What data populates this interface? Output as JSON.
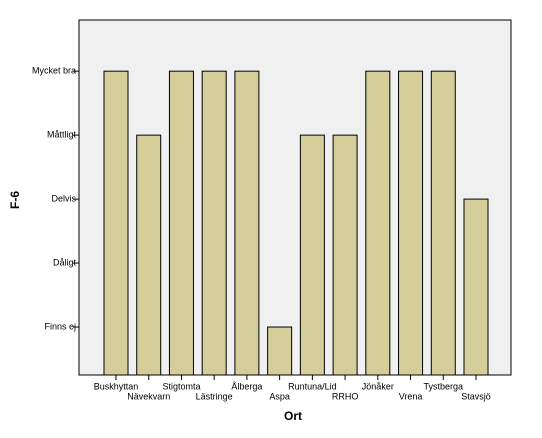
{
  "chart_data": {
    "type": "bar",
    "categories": [
      "Buskhyttan",
      "Nävekvarn",
      "Stigtomta",
      "Lästringe",
      "Ålberga",
      "Aspa",
      "Runtuna/Lid",
      "RRHO",
      "Jönåker",
      "Vrena",
      "Tystberga",
      "Stavsjö"
    ],
    "values": [
      5,
      4,
      5,
      5,
      5,
      1,
      4,
      4,
      5,
      5,
      5,
      3
    ],
    "color": "#d4cf9a",
    "xlabel": "Ort",
    "ylabel": "F-6",
    "ylim": [
      0.25,
      5.8
    ],
    "yticks": [
      {
        "value": 1,
        "label": "Finns ej"
      },
      {
        "value": 2,
        "label": "Dåligt"
      },
      {
        "value": 3,
        "label": "Delvis"
      },
      {
        "value": 4,
        "label": "Måttligt"
      },
      {
        "value": 5,
        "label": "Mycket bra"
      }
    ],
    "grid": false
  }
}
